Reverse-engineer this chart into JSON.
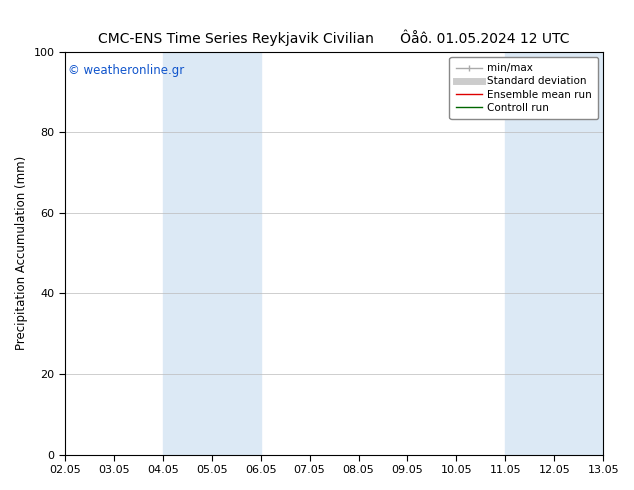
{
  "title_left": "CMC-ENS Time Series Reykjavik Civilian",
  "title_right": "Ôåô. 01.05.2024 12 UTC",
  "ylabel": "Precipitation Accumulation (mm)",
  "ylim": [
    0,
    100
  ],
  "yticks": [
    0,
    20,
    40,
    60,
    80,
    100
  ],
  "xtick_labels": [
    "02.05",
    "03.05",
    "04.05",
    "05.05",
    "06.05",
    "07.05",
    "08.05",
    "09.05",
    "10.05",
    "11.05",
    "12.05",
    "13.05"
  ],
  "shaded_regions": [
    {
      "xmin": 2,
      "xmax": 3,
      "color": "#dce9f5"
    },
    {
      "xmin": 3,
      "xmax": 4,
      "color": "#dce9f5"
    },
    {
      "xmin": 9,
      "xmax": 10,
      "color": "#dce9f5"
    },
    {
      "xmin": 10,
      "xmax": 11,
      "color": "#dce9f5"
    }
  ],
  "watermark_text": "© weatheronline.gr",
  "watermark_color": "#1155cc",
  "legend_items": [
    {
      "label": "min/max",
      "color": "#aaaaaa",
      "lw": 1.0
    },
    {
      "label": "Standard deviation",
      "color": "#cccccc",
      "lw": 5
    },
    {
      "label": "Ensemble mean run",
      "color": "#dd0000",
      "lw": 1.0
    },
    {
      "label": "Controll run",
      "color": "#006600",
      "lw": 1.0
    }
  ],
  "bg_color": "#ffffff",
  "plot_bg_color": "#ffffff",
  "title_fontsize": 10,
  "tick_fontsize": 8,
  "ylabel_fontsize": 8.5,
  "legend_fontsize": 7.5
}
